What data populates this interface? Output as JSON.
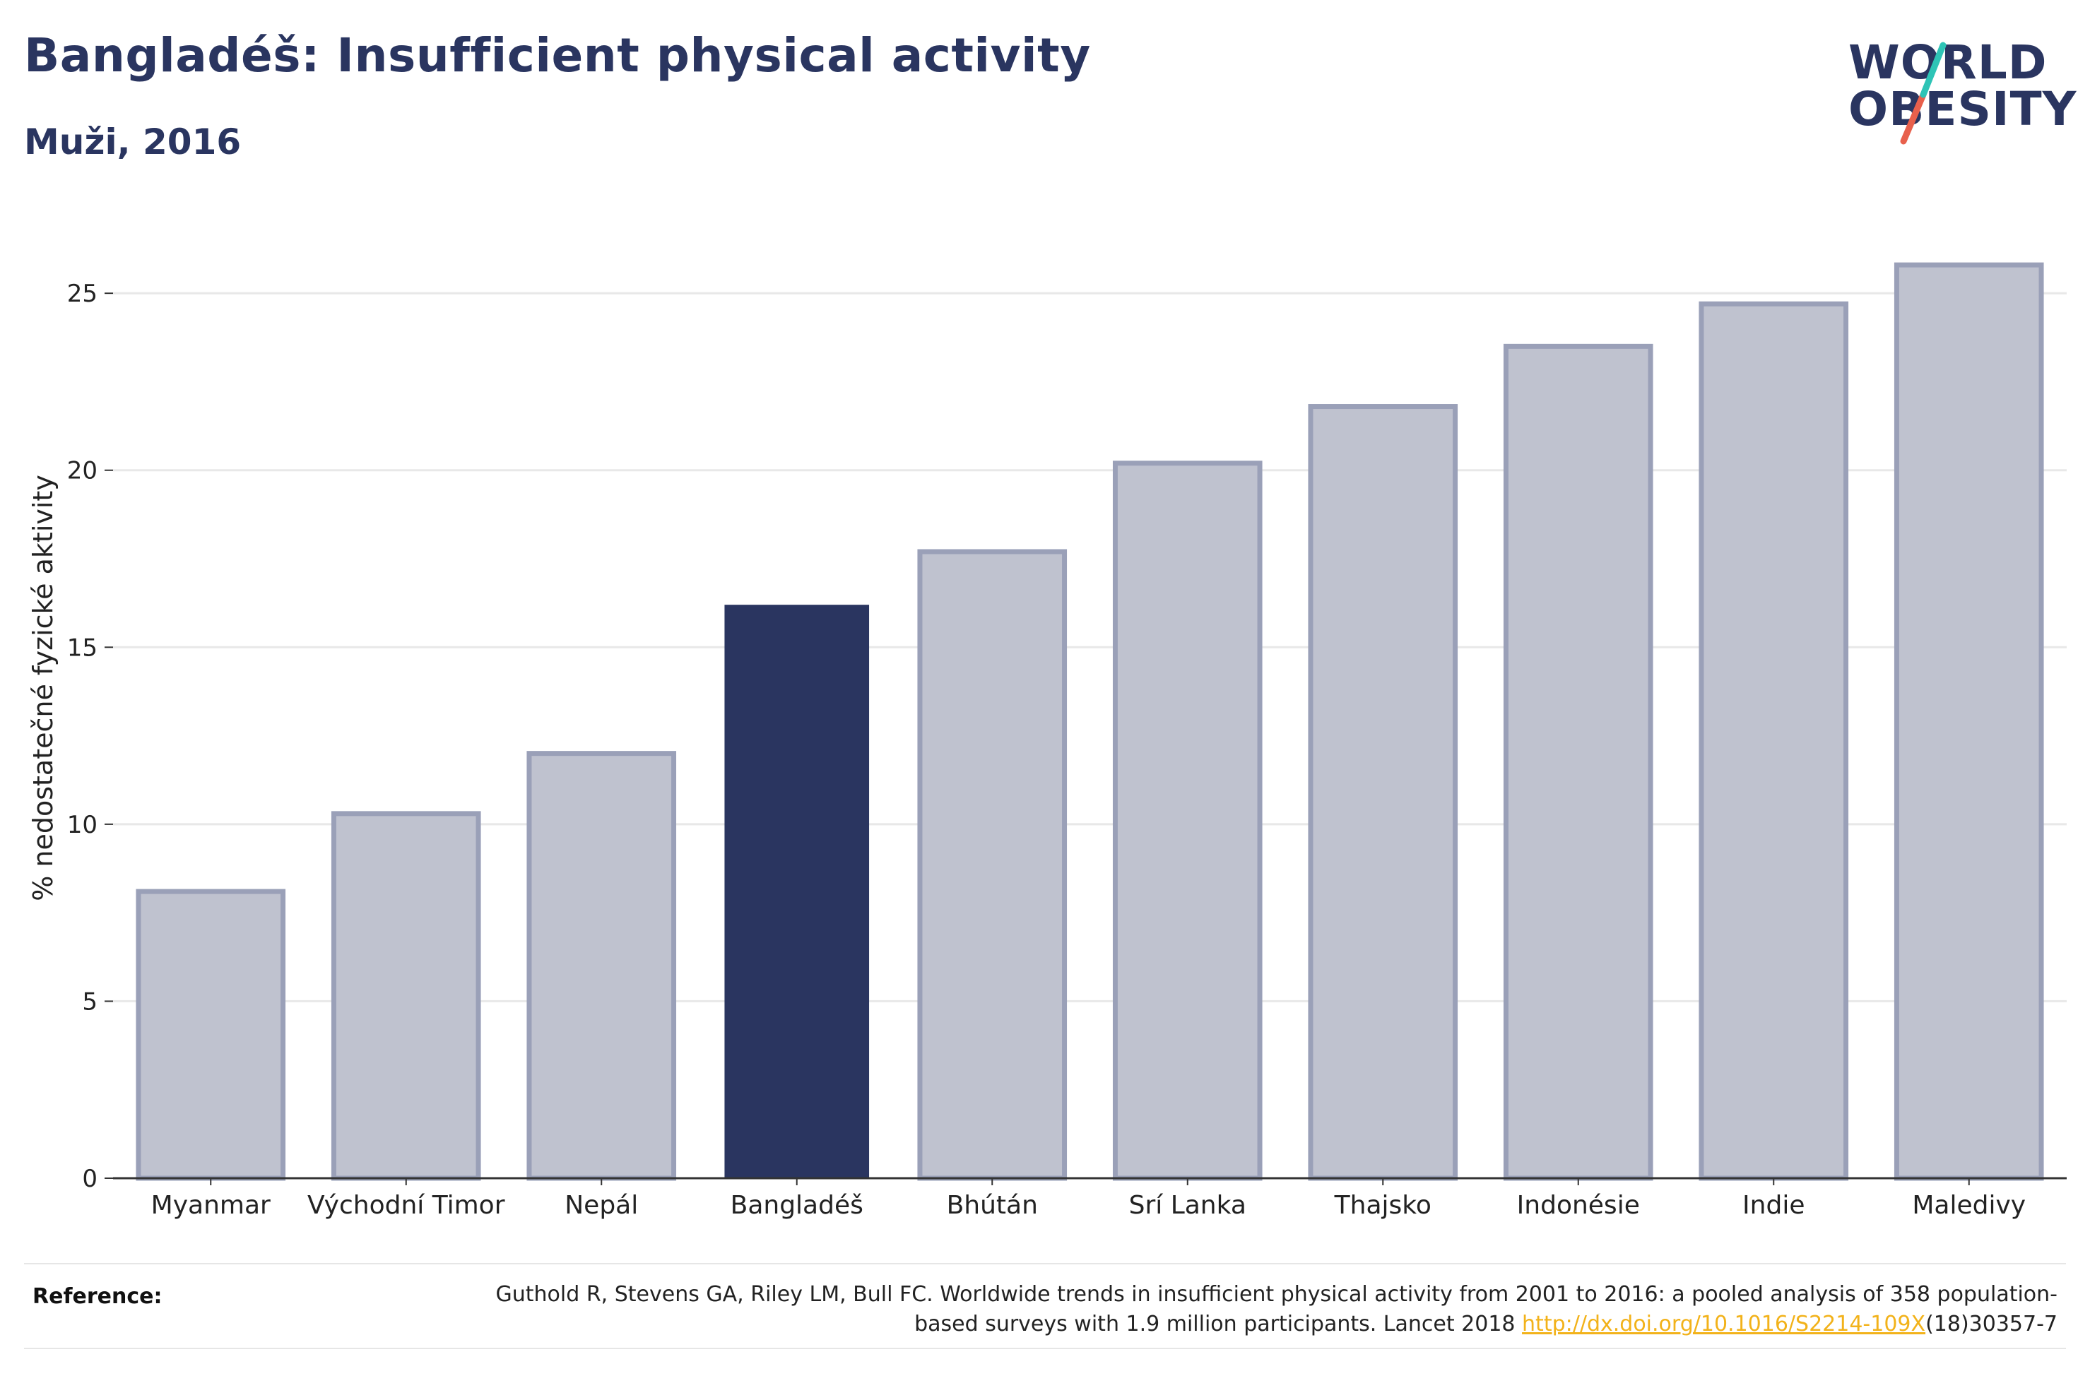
{
  "header": {
    "title": "Bangladéš: Insufficient physical activity",
    "subtitle": "Muži, 2016"
  },
  "logo": {
    "line1": "WORLD",
    "line2": "OBESITY",
    "slash_colors": [
      "#2ec4b6",
      "#e8604c"
    ]
  },
  "reference": {
    "label": "Reference:",
    "text_part1": "Guthold R, Stevens GA, Riley LM, Bull FC. Worldwide trends in insufficient physical activity from 2001 to 2016: a pooled analysis of 358 population-based surveys with 1.9 million participants. Lancet 2018 ",
    "link": "http://dx.doi.org/10.1016/S2214-109X",
    "text_part2": "(18)30357-7"
  },
  "colors": {
    "highlight": "#2a3560",
    "other_fill": "#bfc2cf",
    "other_stroke": "#9aa0b8",
    "grid": "#e8e8e8"
  },
  "chart_data": {
    "type": "bar",
    "ylabel": "% nedostatečné fyzické aktivity",
    "ylim": [
      0,
      26.5
    ],
    "yticks": [
      0,
      5,
      10,
      15,
      20,
      25
    ],
    "grid": true,
    "highlight_category": "Bangladéš",
    "categories": [
      "Myanmar",
      "Východní Timor",
      "Nepál",
      "Bangladéš",
      "Bhútán",
      "Srí Lanka",
      "Thajsko",
      "Indonésie",
      "Indie",
      "Maledivy"
    ],
    "values": [
      8.1,
      10.3,
      12.0,
      16.2,
      17.7,
      20.2,
      21.8,
      23.5,
      24.7,
      25.8
    ]
  }
}
